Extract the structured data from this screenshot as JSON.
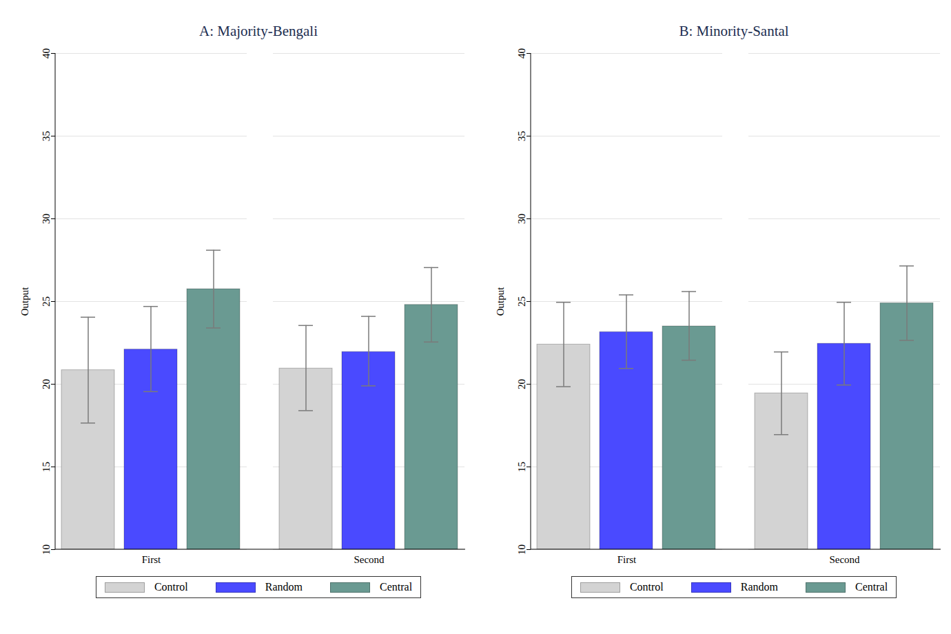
{
  "chart_data": [
    {
      "type": "bar",
      "title": "A: Majority-Bengali",
      "y_label": "Output",
      "categories": [
        "First",
        "Second"
      ],
      "series": [
        {
          "name": "Control",
          "color": "#d3d3d3",
          "values": [
            20.85,
            20.95
          ],
          "error_low": [
            17.65,
            18.4
          ],
          "error_high": [
            24.05,
            23.55
          ]
        },
        {
          "name": "Random",
          "color": "#4a4aff",
          "values": [
            22.1,
            21.95
          ],
          "error_low": [
            19.55,
            19.9
          ],
          "error_high": [
            24.7,
            24.1
          ]
        },
        {
          "name": "Central",
          "color": "#6a9a92",
          "values": [
            25.75,
            24.8
          ],
          "error_low": [
            23.4,
            22.55
          ],
          "error_high": [
            28.1,
            27.05
          ]
        }
      ],
      "ylim": [
        10,
        40
      ],
      "yticks": [
        10,
        15,
        20,
        25,
        30,
        35,
        40
      ],
      "grid": true,
      "legend": "bottom"
    },
    {
      "type": "bar",
      "title": "B: Minority-Santal",
      "y_label": "Output",
      "categories": [
        "First",
        "Second"
      ],
      "series": [
        {
          "name": "Control",
          "color": "#d3d3d3",
          "values": [
            22.4,
            19.45
          ],
          "error_low": [
            19.85,
            16.95
          ],
          "error_high": [
            24.95,
            21.95
          ]
        },
        {
          "name": "Random",
          "color": "#4a4aff",
          "values": [
            23.15,
            22.45
          ],
          "error_low": [
            20.95,
            19.95
          ],
          "error_high": [
            25.4,
            24.95
          ]
        },
        {
          "name": "Central",
          "color": "#6a9a92",
          "values": [
            23.5,
            24.9
          ],
          "error_low": [
            21.45,
            22.65
          ],
          "error_high": [
            25.6,
            27.15
          ]
        }
      ],
      "ylim": [
        10,
        40
      ],
      "yticks": [
        10,
        15,
        20,
        25,
        30,
        35,
        40
      ],
      "grid": true,
      "legend": "bottom"
    }
  ]
}
